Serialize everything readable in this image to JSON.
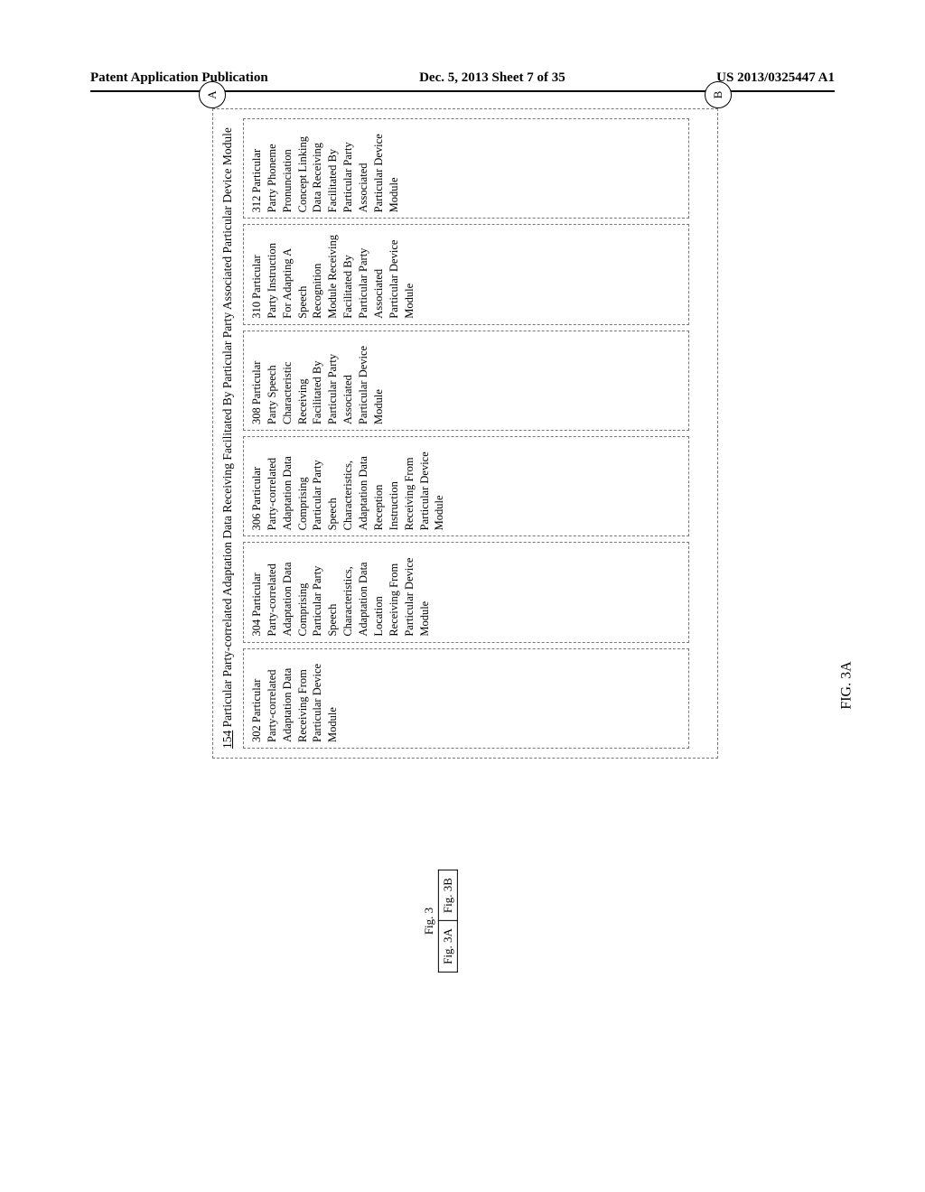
{
  "header": {
    "left": "Patent Application Publication",
    "center": "Dec. 5, 2013  Sheet 7 of 35",
    "right": "US 2013/0325447 A1"
  },
  "figure": {
    "main_label": "FIG. 3A",
    "composite_title": "Fig. 3",
    "composite_left": "Fig. 3A",
    "composite_right": "Fig. 3B"
  },
  "connectors": {
    "a": "A",
    "b": "B"
  },
  "outer_module": {
    "ref": "154",
    "title": " Particular Party-correlated Adaptation Data Receiving Facilitated By Particular Party Associated Particular Device Module"
  },
  "modules": [
    "302 Particular Party-correlated Adaptation Data Receiving From Particular Device Module",
    "304 Particular Party-correlated Adaptation Data Comprising Particular Party Speech Characteristics, Adaptation Data Location Receiving From Particular Device Module",
    "306 Particular Party-correlated Adaptation Data Comprising Particular Party Speech Characteristics, Adaptation Data Reception Instruction Receiving From Particular Device Module",
    "308 Particular Party Speech Characteristic Receiving Facilitated By Particular Party Associated Particular Device Module",
    "310 Particular Party Instruction For Adapting A Speech Recognition Module Receiving Facilitated By Particular Party Associated Particular Device Module",
    "312 Particular Party Phoneme Pronunciation Concept Linking Data Receiving Facilitated By Particular Party Associated Particular Device Module"
  ]
}
